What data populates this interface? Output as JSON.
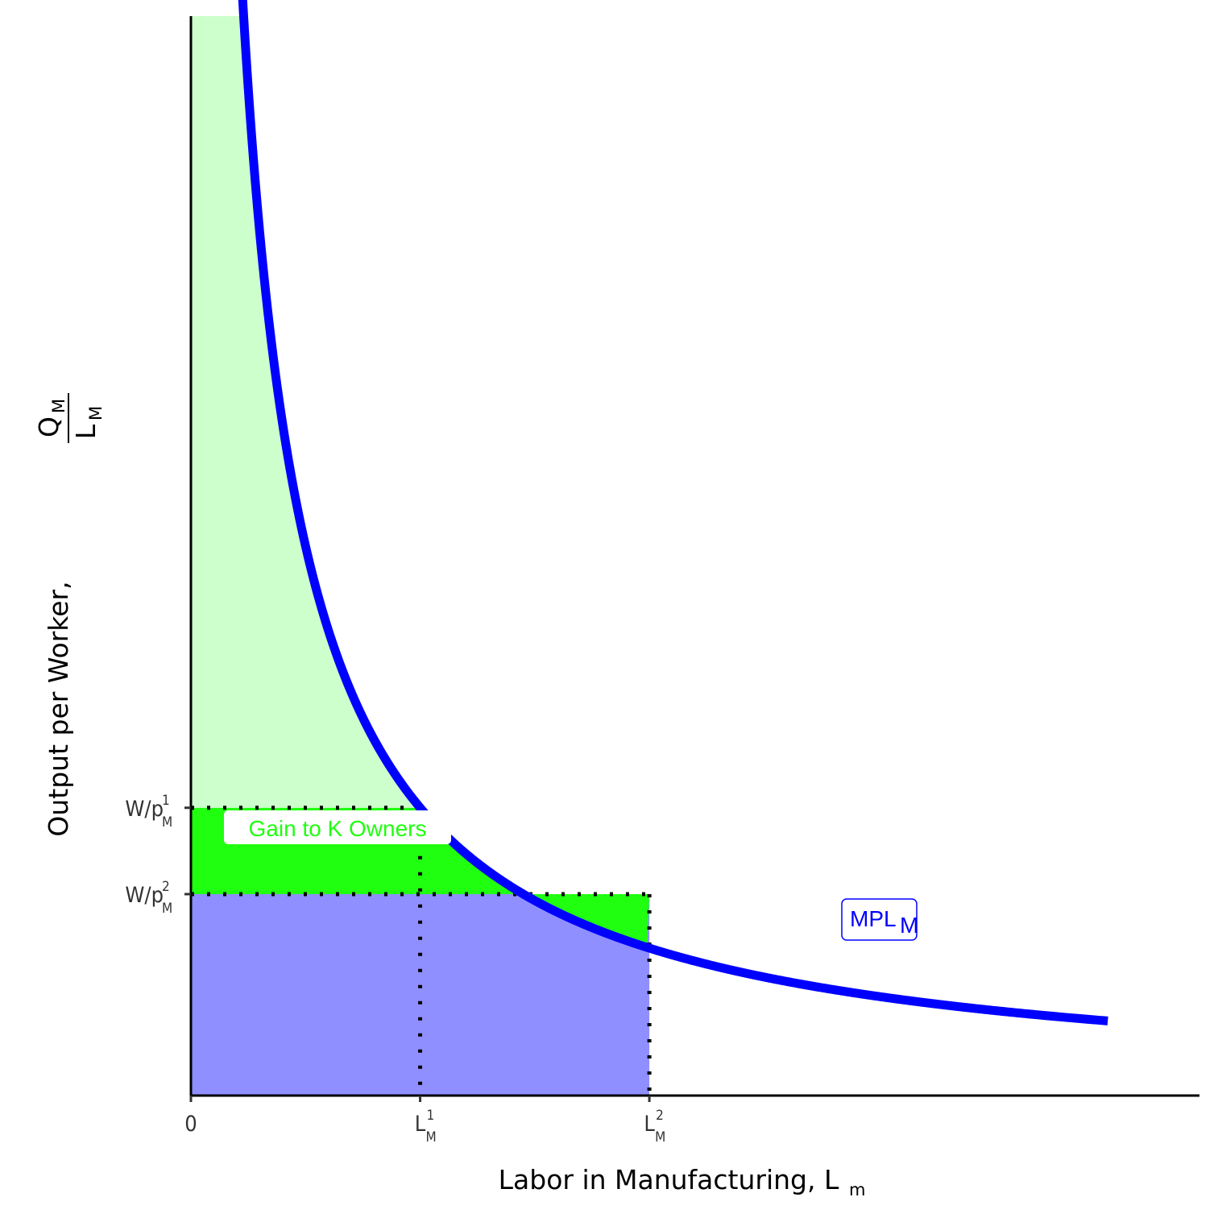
{
  "chart_data": {
    "type": "area",
    "xlabel": {
      "main": "Labor in Manufacturing, L",
      "sub": "m"
    },
    "ylabel": {
      "main": "Output per Worker, ",
      "frac_num": "Q",
      "frac_num_sub": "M",
      "frac_den": "L",
      "frac_den_sub": "M"
    },
    "x_ticks": [
      {
        "main": "0",
        "sub": "",
        "sup": "",
        "value": 0
      },
      {
        "main": "L",
        "sub": "M",
        "sup": "1",
        "value": 1
      },
      {
        "main": "L",
        "sub": "M",
        "sup": "2",
        "value": 2
      }
    ],
    "y_ticks": [
      {
        "main": "W/p",
        "sub": "M",
        "sup": "1",
        "value": 1.333
      },
      {
        "main": "W/p",
        "sub": "M",
        "sup": "2",
        "value": 0.933
      }
    ],
    "xlim": [
      0,
      4.4
    ],
    "ylim": [
      0,
      5
    ],
    "curve": {
      "name": "MPL",
      "name_sub": "M",
      "formula": "y = 1.4 / (x + 0.05)",
      "x_start": 0.08,
      "x_end": 4.0,
      "color": "#0000ff"
    },
    "regions": [
      {
        "name": "capital-income-initial",
        "color": "#ccffcc"
      },
      {
        "name": "gain-to-k-owners",
        "color": "#1fff0f",
        "label": "Gain to K Owners"
      },
      {
        "name": "labor-income",
        "color": "#8f8fff"
      }
    ],
    "annotations": [
      {
        "text": "Gain to K Owners",
        "color": "#1fff0f"
      }
    ],
    "grid": false,
    "legend": "none"
  }
}
